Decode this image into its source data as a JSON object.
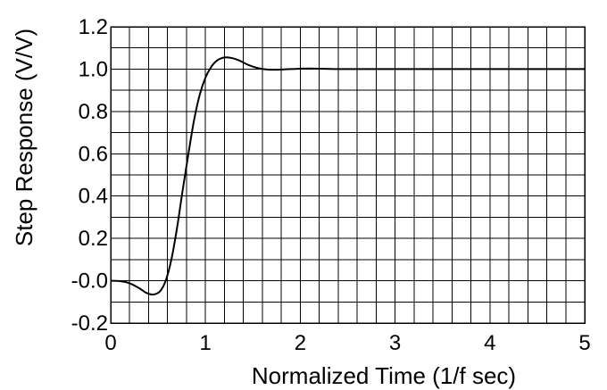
{
  "chart_data": {
    "type": "line",
    "xlabel": "Normalized Time (1/f sec)",
    "ylabel": "Step Response (V/V)",
    "xlim": [
      0,
      5
    ],
    "ylim": [
      -0.2,
      1.2
    ],
    "grid": true,
    "x_ticks": [
      0,
      1,
      2,
      3,
      4,
      5
    ],
    "x_tick_labels": [
      "0",
      "1",
      "2",
      "3",
      "4",
      "5"
    ],
    "y_ticks": [
      1.2,
      1.0,
      0.8,
      0.6,
      0.4,
      0.2,
      0.0,
      -0.2
    ],
    "y_tick_labels": [
      "1.2",
      "1.0",
      "0.8",
      "0.6",
      "0.4",
      "0.2",
      "-0.0",
      "-0.2"
    ],
    "x_minor_step": 0.2,
    "y_minor_step": 0.1,
    "series": [
      {
        "color": "#000000",
        "points": [
          [
            0.0,
            0.0
          ],
          [
            0.1,
            -0.002
          ],
          [
            0.2,
            -0.012
          ],
          [
            0.3,
            -0.035
          ],
          [
            0.38,
            -0.058
          ],
          [
            0.45,
            -0.065
          ],
          [
            0.52,
            -0.05
          ],
          [
            0.58,
            0.0
          ],
          [
            0.64,
            0.1
          ],
          [
            0.7,
            0.25
          ],
          [
            0.76,
            0.43
          ],
          [
            0.82,
            0.6
          ],
          [
            0.88,
            0.76
          ],
          [
            0.94,
            0.88
          ],
          [
            1.0,
            0.96
          ],
          [
            1.06,
            1.01
          ],
          [
            1.12,
            1.04
          ],
          [
            1.2,
            1.055
          ],
          [
            1.28,
            1.052
          ],
          [
            1.36,
            1.04
          ],
          [
            1.45,
            1.02
          ],
          [
            1.55,
            1.005
          ],
          [
            1.65,
            0.998
          ],
          [
            1.75,
            0.997
          ],
          [
            1.9,
            1.0
          ],
          [
            2.1,
            1.003
          ],
          [
            2.4,
            1.0
          ],
          [
            3.0,
            1.0
          ],
          [
            4.0,
            1.0
          ],
          [
            5.0,
            1.0
          ]
        ]
      }
    ]
  }
}
